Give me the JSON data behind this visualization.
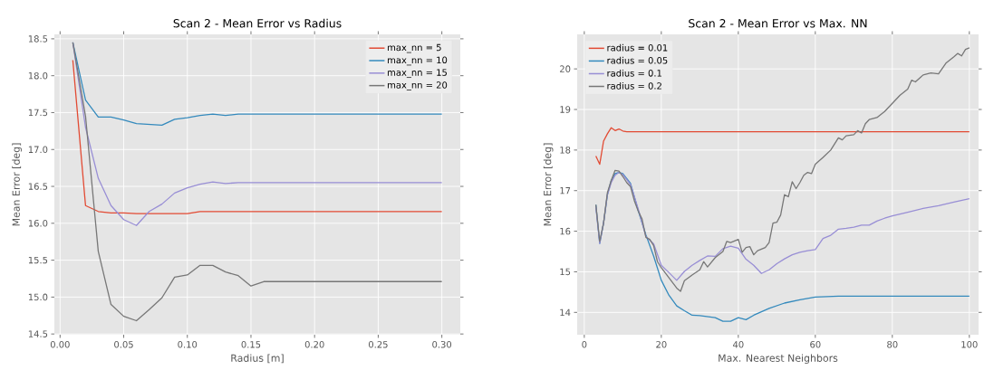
{
  "chart_data": [
    {
      "type": "line",
      "title": "Scan 2 - Mean Error vs Radius",
      "xlabel": "Radius [m]",
      "ylabel": "Mean Error [deg]",
      "x": [
        0.01,
        0.02,
        0.03,
        0.04,
        0.05,
        0.06,
        0.07,
        0.08,
        0.09,
        0.1,
        0.11,
        0.12,
        0.13,
        0.14,
        0.15,
        0.16,
        0.17,
        0.18,
        0.19,
        0.2,
        0.21,
        0.22,
        0.23,
        0.24,
        0.25,
        0.26,
        0.27,
        0.28,
        0.29,
        0.3
      ],
      "series": [
        {
          "name": "max_nn = 5",
          "color": "#e24a33",
          "values": [
            18.21,
            16.24,
            16.16,
            16.14,
            16.14,
            16.13,
            16.13,
            16.13,
            16.13,
            16.13,
            16.16,
            16.16,
            16.16,
            16.16,
            16.16,
            16.16,
            16.16,
            16.16,
            16.16,
            16.16,
            16.16,
            16.16,
            16.16,
            16.16,
            16.16,
            16.16,
            16.16,
            16.16,
            16.16,
            16.16
          ]
        },
        {
          "name": "max_nn = 10",
          "color": "#348abd",
          "values": [
            18.45,
            17.67,
            17.44,
            17.44,
            17.4,
            17.35,
            17.34,
            17.33,
            17.41,
            17.43,
            17.46,
            17.48,
            17.46,
            17.48,
            17.48,
            17.48,
            17.48,
            17.48,
            17.48,
            17.48,
            17.48,
            17.48,
            17.48,
            17.48,
            17.48,
            17.48,
            17.48,
            17.48,
            17.48,
            17.48
          ]
        },
        {
          "name": "max_nn = 15",
          "color": "#988ed5",
          "values": [
            18.45,
            17.3,
            16.61,
            16.24,
            16.05,
            15.97,
            16.16,
            16.26,
            16.41,
            16.48,
            16.53,
            16.56,
            16.54,
            16.55,
            16.55,
            16.55,
            16.55,
            16.55,
            16.55,
            16.55,
            16.55,
            16.55,
            16.55,
            16.55,
            16.55,
            16.55,
            16.55,
            16.55,
            16.55,
            16.55
          ]
        },
        {
          "name": "max_nn = 20",
          "color": "#777777",
          "values": [
            18.45,
            17.45,
            15.62,
            14.9,
            14.74,
            14.68,
            14.83,
            14.99,
            15.27,
            15.3,
            15.43,
            15.43,
            15.34,
            15.29,
            15.15,
            15.21,
            15.21,
            15.21,
            15.21,
            15.21,
            15.21,
            15.21,
            15.21,
            15.21,
            15.21,
            15.21,
            15.21,
            15.21,
            15.21,
            15.21
          ]
        }
      ],
      "xlim": [
        -0.0045,
        0.3145
      ],
      "ylim": [
        14.49,
        18.56
      ],
      "xticks": [
        {
          "value": 0,
          "label": "0.00"
        },
        {
          "value": 0.05,
          "label": "0.05"
        },
        {
          "value": 0.1,
          "label": "0.10"
        },
        {
          "value": 0.15,
          "label": "0.15"
        },
        {
          "value": 0.2,
          "label": "0.20"
        },
        {
          "value": 0.25,
          "label": "0.25"
        },
        {
          "value": 0.3,
          "label": "0.30"
        }
      ],
      "yticks": [
        14.5,
        {
          "value": 15,
          "label": "15.0"
        },
        15.5,
        {
          "value": 16,
          "label": "16.0"
        },
        16.5,
        {
          "value": 17,
          "label": "17.0"
        },
        17.5,
        {
          "value": 18,
          "label": "18.0"
        },
        18.5
      ],
      "grid": true,
      "legend": "top right"
    },
    {
      "type": "line",
      "title": "Scan 2 - Mean Error vs Max. NN",
      "xlabel": "Max. Nearest Neighbors",
      "ylabel": "Mean Error [deg]",
      "series": [
        {
          "name": "radius = 0.01",
          "color": "#e24a33",
          "x": [
            3,
            4,
            5,
            6,
            7,
            8,
            9,
            10,
            11,
            100
          ],
          "values": [
            17.85,
            17.65,
            18.22,
            18.4,
            18.55,
            18.48,
            18.52,
            18.47,
            18.45,
            18.45
          ]
        },
        {
          "name": "radius = 0.05",
          "color": "#348abd",
          "x": [
            3,
            4,
            5,
            6,
            7,
            8,
            9,
            10,
            12,
            14,
            16,
            18,
            20,
            22,
            24,
            26,
            28,
            30,
            34,
            36,
            38,
            40,
            42,
            44,
            48,
            52,
            56,
            60,
            66,
            100
          ],
          "values": [
            16.65,
            15.7,
            16.2,
            16.9,
            17.25,
            17.42,
            17.45,
            17.42,
            17.18,
            16.51,
            15.91,
            15.39,
            14.79,
            14.42,
            14.16,
            14.04,
            13.93,
            13.92,
            13.87,
            13.78,
            13.78,
            13.87,
            13.82,
            13.93,
            14.1,
            14.23,
            14.31,
            14.38,
            14.4,
            14.4
          ]
        },
        {
          "name": "radius = 0.1",
          "color": "#988ed5",
          "x": [
            3,
            4,
            5,
            6,
            7,
            8,
            9,
            10,
            12,
            14,
            16,
            18,
            20,
            22,
            24,
            26,
            28,
            30,
            32,
            34,
            36,
            38,
            40,
            42,
            44,
            46,
            48,
            50,
            52,
            54,
            56,
            58,
            60,
            62,
            64,
            66,
            68,
            70,
            72,
            74,
            76,
            78,
            80,
            84,
            88,
            92,
            96,
            100
          ],
          "values": [
            16.6,
            15.7,
            16.2,
            16.9,
            17.2,
            17.38,
            17.45,
            17.4,
            17.15,
            16.55,
            15.87,
            15.69,
            15.16,
            14.98,
            14.79,
            15.01,
            15.16,
            15.28,
            15.39,
            15.38,
            15.57,
            15.63,
            15.58,
            15.31,
            15.16,
            14.96,
            15.05,
            15.2,
            15.32,
            15.42,
            15.48,
            15.52,
            15.55,
            15.82,
            15.9,
            16.05,
            16.07,
            16.1,
            16.15,
            16.15,
            16.25,
            16.32,
            16.38,
            16.47,
            16.56,
            16.63,
            16.72,
            16.8
          ]
        },
        {
          "name": "radius = 0.2",
          "color": "#777777",
          "x": [
            3,
            4,
            5,
            6,
            7,
            8,
            9,
            10,
            11,
            12,
            13,
            14,
            15,
            16,
            17,
            18,
            19,
            20,
            22,
            24,
            25,
            26,
            28,
            30,
            31,
            32,
            34,
            36,
            37,
            38,
            40,
            41,
            42,
            43,
            44,
            45,
            47,
            48,
            49,
            50,
            51,
            52,
            53,
            54,
            55,
            56,
            57,
            58,
            59,
            60,
            62,
            64,
            66,
            67,
            68,
            70,
            71,
            72,
            73,
            74,
            76,
            78,
            80,
            82,
            84,
            85,
            86,
            88,
            90,
            92,
            94,
            96,
            97,
            98,
            99,
            100
          ],
          "values": [
            16.65,
            15.75,
            16.2,
            16.95,
            17.25,
            17.5,
            17.48,
            17.35,
            17.2,
            17.1,
            16.75,
            16.5,
            16.3,
            15.85,
            15.8,
            15.65,
            15.25,
            15.1,
            14.85,
            14.6,
            14.52,
            14.78,
            14.92,
            15.05,
            15.25,
            15.12,
            15.35,
            15.5,
            15.75,
            15.72,
            15.8,
            15.48,
            15.6,
            15.62,
            15.42,
            15.52,
            15.6,
            15.72,
            16.2,
            16.22,
            16.4,
            16.9,
            16.85,
            17.22,
            17.05,
            17.2,
            17.38,
            17.45,
            17.42,
            17.65,
            17.82,
            18.0,
            18.3,
            18.25,
            18.35,
            18.38,
            18.48,
            18.42,
            18.65,
            18.75,
            18.8,
            18.95,
            19.15,
            19.35,
            19.5,
            19.72,
            19.68,
            19.85,
            19.9,
            19.88,
            20.15,
            20.3,
            20.38,
            20.32,
            20.48,
            20.52
          ]
        }
      ],
      "xlim": [
        -1.85,
        102.4
      ],
      "ylim": [
        13.45,
        20.85
      ],
      "xticks": [
        0,
        20,
        40,
        60,
        80,
        100
      ],
      "yticks": [
        14,
        15,
        16,
        17,
        18,
        19,
        20
      ],
      "grid": true,
      "legend": "top left"
    }
  ]
}
